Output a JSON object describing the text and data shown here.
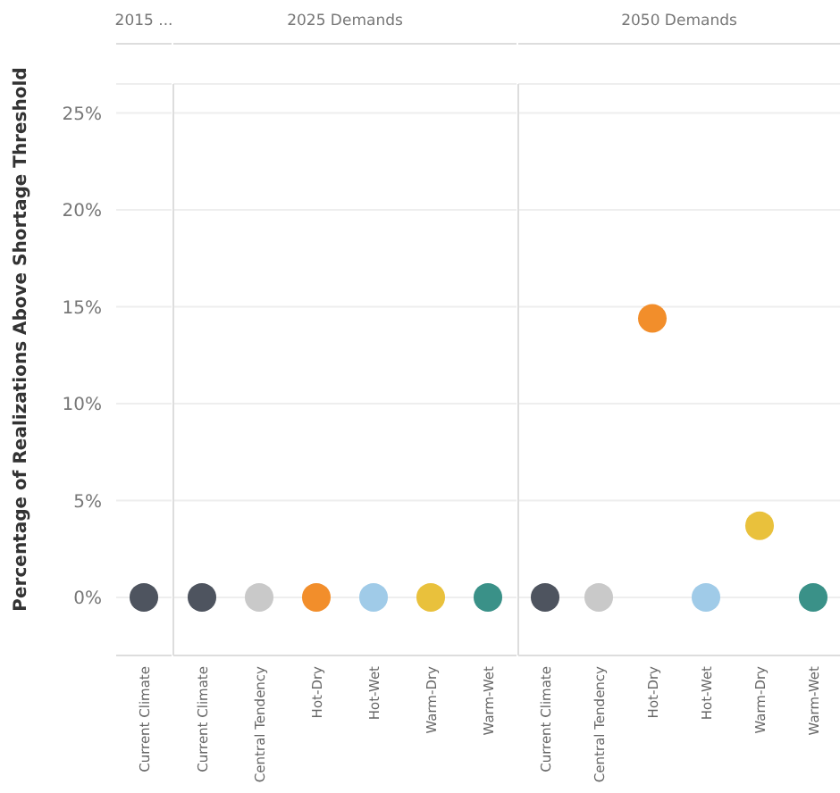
{
  "chart_data": [
    {
      "type": "scatter",
      "title": "2015 ...",
      "ylabel": "Percentage of Realizations Above Shortage Threshold",
      "categories": [
        "Current Climate"
      ],
      "values": [
        0
      ],
      "colors": [
        "#4e545f"
      ],
      "ylim": [
        -3,
        26.5
      ],
      "yticks": [
        {
          "value": 0,
          "label": "0%"
        },
        {
          "value": 5,
          "label": "5%"
        },
        {
          "value": 10,
          "label": "10%"
        },
        {
          "value": 15,
          "label": "15%"
        },
        {
          "value": 20,
          "label": "20%"
        },
        {
          "value": 25,
          "label": "25%"
        }
      ],
      "grid": "y",
      "marker": "circle"
    },
    {
      "type": "scatter",
      "title": "2025 Demands",
      "categories": [
        "Current Climate",
        "Central Tendency",
        "Hot-Dry",
        "Hot-Wet",
        "Warm-Dry",
        "Warm-Wet"
      ],
      "values": [
        0,
        0,
        0,
        0,
        0,
        0
      ],
      "colors": [
        "#4e545f",
        "#c9c9c9",
        "#f28e2b",
        "#a0cbe8",
        "#e9c13c",
        "#3a9188"
      ],
      "ylim": [
        -3,
        26.5
      ],
      "yticks": [
        {
          "value": 0,
          "label": null
        },
        {
          "value": 5,
          "label": null
        },
        {
          "value": 10,
          "label": null
        },
        {
          "value": 15,
          "label": null
        },
        {
          "value": 20,
          "label": null
        },
        {
          "value": 25,
          "label": null
        }
      ],
      "grid": "y",
      "marker": "circle",
      "tick_labels": "x"
    },
    {
      "type": "scatter",
      "title": "2050 Demands",
      "categories": [
        "Current Climate",
        "Central Tendency",
        "Hot-Dry",
        "Hot-Wet",
        "Warm-Dry",
        "Warm-Wet"
      ],
      "values": [
        0,
        0,
        14.4,
        0,
        3.7,
        0
      ],
      "colors": [
        "#4e545f",
        "#c9c9c9",
        "#f28e2b",
        "#a0cbe8",
        "#e9c13c",
        "#3a9188"
      ],
      "ylim": [
        -3,
        26.5
      ],
      "yticks": [
        {
          "value": 0,
          "label": null
        },
        {
          "value": 5,
          "label": null
        },
        {
          "value": 10,
          "label": null
        },
        {
          "value": 15,
          "label": null
        },
        {
          "value": 20,
          "label": null
        },
        {
          "value": 25,
          "label": null
        }
      ],
      "grid": "y",
      "marker": "circle",
      "tick_labels": "x"
    }
  ]
}
